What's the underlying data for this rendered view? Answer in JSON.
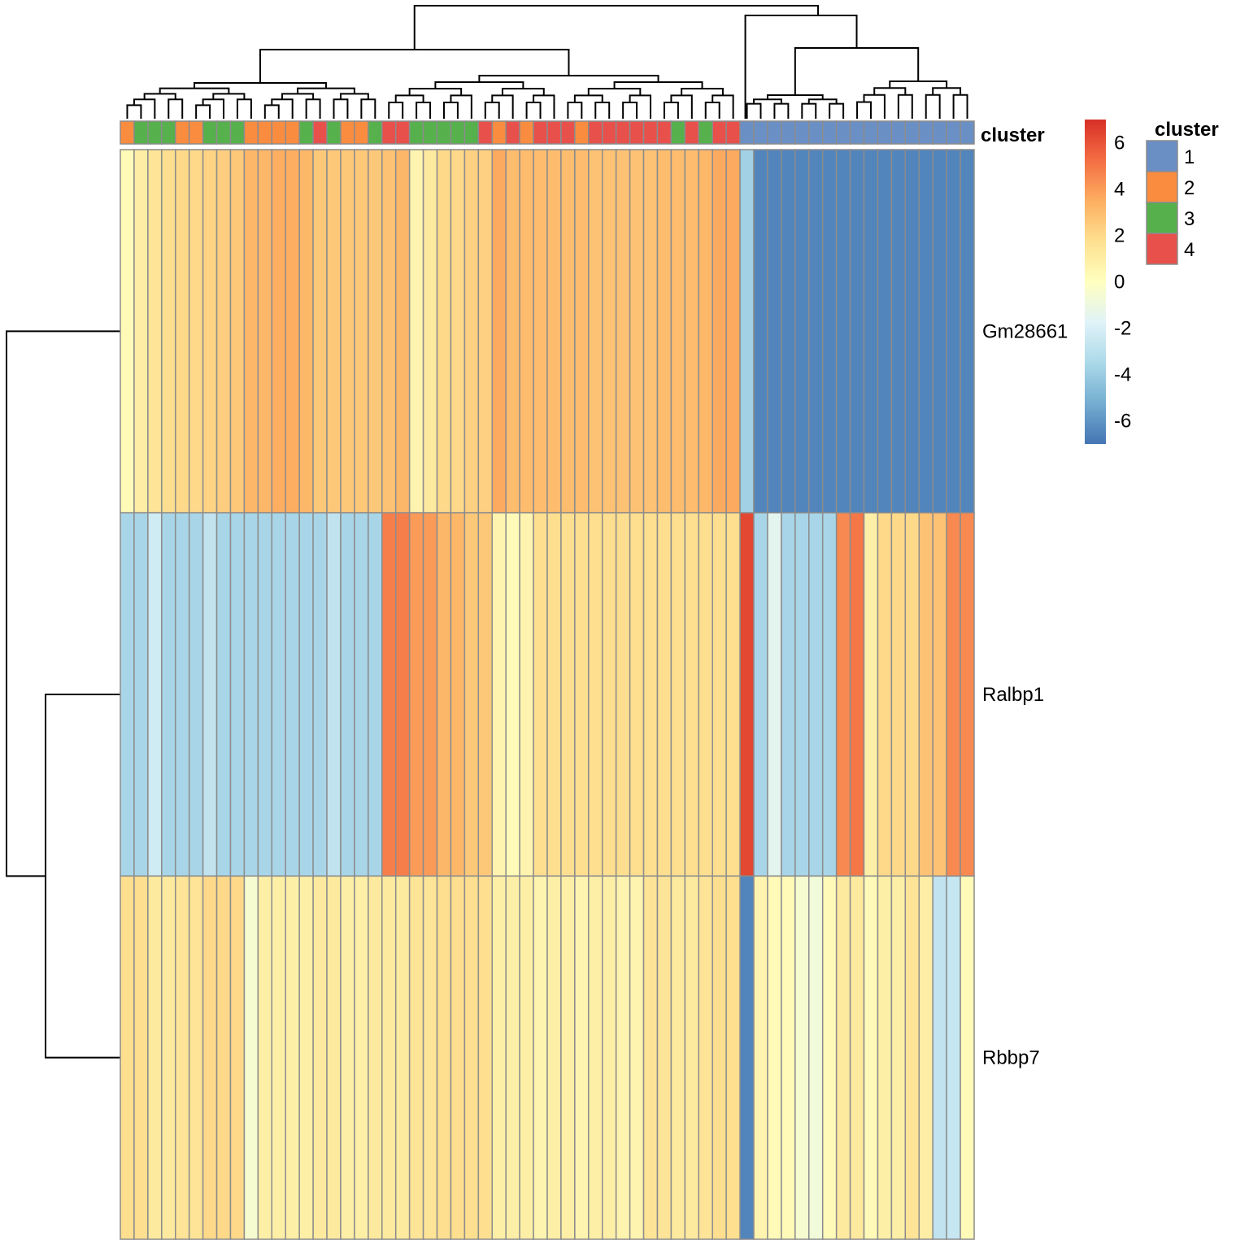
{
  "chart_data": {
    "type": "heatmap",
    "title": "",
    "rows": [
      "Gm28661",
      "Ralbp1",
      "Rbbp7"
    ],
    "annotation": {
      "name": "cluster",
      "levels": [
        "1",
        "2",
        "3",
        "4"
      ],
      "colors": {
        "1": "#6A8FC5",
        "2": "#FA8C40",
        "3": "#56B04C",
        "4": "#E8504B"
      },
      "values": [
        2,
        3,
        3,
        3,
        2,
        2,
        3,
        3,
        3,
        2,
        2,
        2,
        2,
        3,
        4,
        3,
        2,
        2,
        3,
        4,
        4,
        3,
        3,
        3,
        3,
        3,
        4,
        2,
        4,
        2,
        4,
        4,
        4,
        2,
        4,
        4,
        4,
        4,
        4,
        4,
        3,
        4,
        3,
        4,
        4,
        1,
        1,
        1,
        1,
        1,
        1,
        1,
        1,
        1,
        1,
        1,
        1,
        1,
        1,
        1,
        1,
        1
      ]
    },
    "values": [
      [
        0.3,
        1.0,
        1.5,
        1.8,
        2.0,
        2.0,
        2.2,
        2.4,
        2.6,
        3.2,
        3.2,
        3.5,
        3.5,
        3.2,
        2.6,
        2.6,
        2.6,
        2.6,
        2.6,
        2.8,
        3.2,
        0.6,
        1.2,
        2.0,
        2.0,
        2.3,
        2.3,
        3.6,
        3.0,
        3.0,
        3.0,
        3.0,
        3.0,
        3.0,
        2.8,
        2.8,
        2.8,
        2.8,
        2.8,
        3.0,
        3.0,
        3.0,
        3.2,
        3.6,
        3.6,
        -3.8,
        -6.5,
        -6.5,
        -6.5,
        -6.5,
        -6.5,
        -6.5,
        -6.5,
        -6.5,
        -6.5,
        -6.5,
        -6.5,
        -6.5,
        -6.5,
        -6.5,
        -6.5,
        -6.5
      ],
      [
        -3.6,
        -3.6,
        -2.3,
        -3.6,
        -3.6,
        -3.6,
        -2.8,
        -3.6,
        -3.6,
        -3.6,
        -3.6,
        -3.6,
        -3.6,
        -3.6,
        -3.6,
        -2.8,
        -3.6,
        -3.6,
        -3.6,
        4.8,
        4.8,
        4.0,
        4.0,
        3.2,
        3.2,
        2.6,
        2.6,
        0.6,
        0.3,
        0.6,
        1.8,
        1.8,
        1.8,
        1.8,
        1.8,
        1.8,
        1.8,
        1.8,
        1.8,
        1.8,
        1.8,
        1.8,
        1.8,
        1.8,
        1.8,
        6.3,
        -3.6,
        -1.5,
        -3.6,
        -3.6,
        -3.6,
        -3.6,
        4.5,
        5.0,
        0.9,
        2.0,
        2.0,
        2.0,
        2.8,
        2.8,
        4.5,
        4.5
      ],
      [
        1.8,
        1.8,
        1.2,
        1.2,
        1.5,
        1.5,
        2.0,
        2.0,
        2.0,
        -0.5,
        0.9,
        0.9,
        0.9,
        0.9,
        1.2,
        1.2,
        0.9,
        0.9,
        1.2,
        1.2,
        1.2,
        1.5,
        1.5,
        1.8,
        1.8,
        1.8,
        1.8,
        0.9,
        0.9,
        0.9,
        0.6,
        0.9,
        0.9,
        0.6,
        0.9,
        0.9,
        0.6,
        0.6,
        1.5,
        1.5,
        1.2,
        1.2,
        1.5,
        1.8,
        1.8,
        -6.5,
        0.6,
        0.3,
        0.3,
        -0.5,
        -0.8,
        0.3,
        1.2,
        1.2,
        0.3,
        0.9,
        0.9,
        1.5,
        1.0,
        -2.8,
        -2.6,
        0.3
      ]
    ],
    "color_scale": {
      "min": -7,
      "max": 7,
      "palette": [
        "#4575B4",
        "#74ADD1",
        "#ABD9E9",
        "#E0F3F8",
        "#FFFFBF",
        "#FEE090",
        "#FDAE61",
        "#F46D43",
        "#D73027"
      ],
      "ticks": [
        6,
        4,
        2,
        0,
        -2,
        -4,
        -6
      ]
    },
    "legend_title": "cluster",
    "annotation_legend": [
      "1",
      "2",
      "3",
      "4"
    ],
    "dendrograms": {
      "row": true,
      "column": true
    }
  }
}
